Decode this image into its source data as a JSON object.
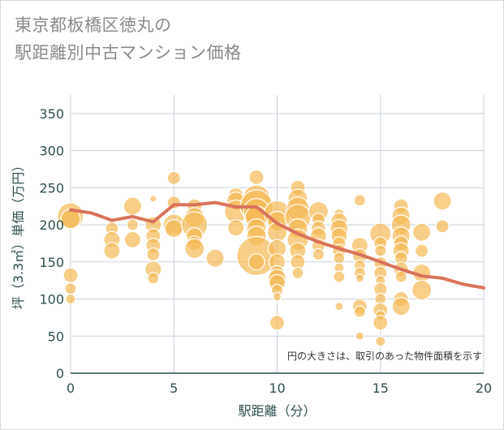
{
  "title_line1": "東京都板橋区徳丸の",
  "title_line2": "駅距離別中古マンション価格",
  "chart_data": {
    "type": "scatter",
    "xlabel": "駅距離（分）",
    "ylabel": "坪（3.3㎡）単価（万円）",
    "xlim": [
      0,
      20
    ],
    "ylim": [
      0,
      375
    ],
    "xticks": [
      0,
      5,
      10,
      15,
      20
    ],
    "yticks": [
      0,
      50,
      100,
      150,
      200,
      250,
      300,
      350
    ],
    "grid": true,
    "annotation": "円の大きさは、取引のあった物件面積を示す",
    "colors": {
      "bubble": "#f5b955",
      "line": "#d9735b",
      "grid": "#c9d2dc"
    },
    "bubbles": [
      {
        "x": 0,
        "y": 212,
        "s": 16
      },
      {
        "x": 0,
        "y": 208,
        "s": 12
      },
      {
        "x": 0,
        "y": 132,
        "s": 9
      },
      {
        "x": 0,
        "y": 114,
        "s": 7
      },
      {
        "x": 0,
        "y": 100,
        "s": 6
      },
      {
        "x": 2,
        "y": 195,
        "s": 8
      },
      {
        "x": 2,
        "y": 180,
        "s": 10
      },
      {
        "x": 2,
        "y": 165,
        "s": 10
      },
      {
        "x": 3,
        "y": 225,
        "s": 11
      },
      {
        "x": 3,
        "y": 200,
        "s": 7
      },
      {
        "x": 3,
        "y": 180,
        "s": 10
      },
      {
        "x": 4,
        "y": 235,
        "s": 4
      },
      {
        "x": 4,
        "y": 200,
        "s": 10
      },
      {
        "x": 4,
        "y": 185,
        "s": 9
      },
      {
        "x": 4,
        "y": 172,
        "s": 9
      },
      {
        "x": 4,
        "y": 160,
        "s": 8
      },
      {
        "x": 4,
        "y": 140,
        "s": 10
      },
      {
        "x": 4,
        "y": 128,
        "s": 7
      },
      {
        "x": 5,
        "y": 263,
        "s": 8
      },
      {
        "x": 5,
        "y": 230,
        "s": 8
      },
      {
        "x": 5,
        "y": 200,
        "s": 13
      },
      {
        "x": 5,
        "y": 195,
        "s": 11
      },
      {
        "x": 6,
        "y": 225,
        "s": 9
      },
      {
        "x": 6,
        "y": 210,
        "s": 12
      },
      {
        "x": 6,
        "y": 200,
        "s": 16
      },
      {
        "x": 6,
        "y": 185,
        "s": 10
      },
      {
        "x": 6,
        "y": 175,
        "s": 9
      },
      {
        "x": 6,
        "y": 168,
        "s": 12
      },
      {
        "x": 7,
        "y": 155,
        "s": 11
      },
      {
        "x": 8,
        "y": 240,
        "s": 9
      },
      {
        "x": 8,
        "y": 232,
        "s": 11
      },
      {
        "x": 8,
        "y": 218,
        "s": 14
      },
      {
        "x": 8,
        "y": 196,
        "s": 10
      },
      {
        "x": 9,
        "y": 264,
        "s": 9
      },
      {
        "x": 9,
        "y": 235,
        "s": 17
      },
      {
        "x": 9,
        "y": 225,
        "s": 20
      },
      {
        "x": 9,
        "y": 218,
        "s": 16
      },
      {
        "x": 9,
        "y": 210,
        "s": 14
      },
      {
        "x": 9,
        "y": 195,
        "s": 12
      },
      {
        "x": 9,
        "y": 185,
        "s": 12
      },
      {
        "x": 9,
        "y": 158,
        "s": 24
      },
      {
        "x": 9,
        "y": 150,
        "s": 10
      },
      {
        "x": 10,
        "y": 215,
        "s": 16
      },
      {
        "x": 10,
        "y": 205,
        "s": 12
      },
      {
        "x": 10,
        "y": 190,
        "s": 12
      },
      {
        "x": 10,
        "y": 168,
        "s": 11
      },
      {
        "x": 10,
        "y": 150,
        "s": 10
      },
      {
        "x": 10,
        "y": 135,
        "s": 9
      },
      {
        "x": 10,
        "y": 128,
        "s": 11
      },
      {
        "x": 10,
        "y": 122,
        "s": 10
      },
      {
        "x": 10,
        "y": 112,
        "s": 7
      },
      {
        "x": 10,
        "y": 103,
        "s": 5
      },
      {
        "x": 10,
        "y": 68,
        "s": 9
      },
      {
        "x": 11,
        "y": 250,
        "s": 9
      },
      {
        "x": 11,
        "y": 235,
        "s": 12
      },
      {
        "x": 11,
        "y": 222,
        "s": 14
      },
      {
        "x": 11,
        "y": 210,
        "s": 16
      },
      {
        "x": 11,
        "y": 195,
        "s": 12
      },
      {
        "x": 11,
        "y": 180,
        "s": 13
      },
      {
        "x": 11,
        "y": 165,
        "s": 10
      },
      {
        "x": 11,
        "y": 150,
        "s": 9
      },
      {
        "x": 11,
        "y": 135,
        "s": 7
      },
      {
        "x": 12,
        "y": 218,
        "s": 12
      },
      {
        "x": 12,
        "y": 207,
        "s": 8
      },
      {
        "x": 12,
        "y": 195,
        "s": 9
      },
      {
        "x": 12,
        "y": 185,
        "s": 10
      },
      {
        "x": 12,
        "y": 172,
        "s": 8
      },
      {
        "x": 12,
        "y": 160,
        "s": 7
      },
      {
        "x": 13,
        "y": 215,
        "s": 6
      },
      {
        "x": 13,
        "y": 205,
        "s": 10
      },
      {
        "x": 13,
        "y": 195,
        "s": 11
      },
      {
        "x": 13,
        "y": 185,
        "s": 10
      },
      {
        "x": 13,
        "y": 175,
        "s": 8
      },
      {
        "x": 13,
        "y": 165,
        "s": 8
      },
      {
        "x": 13,
        "y": 155,
        "s": 7
      },
      {
        "x": 13,
        "y": 142,
        "s": 6
      },
      {
        "x": 13,
        "y": 130,
        "s": 7
      },
      {
        "x": 13,
        "y": 90,
        "s": 5
      },
      {
        "x": 14,
        "y": 233,
        "s": 7
      },
      {
        "x": 14,
        "y": 172,
        "s": 10
      },
      {
        "x": 14,
        "y": 158,
        "s": 9
      },
      {
        "x": 14,
        "y": 145,
        "s": 7
      },
      {
        "x": 14,
        "y": 135,
        "s": 7
      },
      {
        "x": 14,
        "y": 128,
        "s": 5
      },
      {
        "x": 14,
        "y": 90,
        "s": 9
      },
      {
        "x": 14,
        "y": 83,
        "s": 7
      },
      {
        "x": 14,
        "y": 50,
        "s": 5
      },
      {
        "x": 15,
        "y": 188,
        "s": 13
      },
      {
        "x": 15,
        "y": 175,
        "s": 8
      },
      {
        "x": 15,
        "y": 165,
        "s": 7
      },
      {
        "x": 15,
        "y": 148,
        "s": 8
      },
      {
        "x": 15,
        "y": 135,
        "s": 8
      },
      {
        "x": 15,
        "y": 125,
        "s": 6
      },
      {
        "x": 15,
        "y": 113,
        "s": 8
      },
      {
        "x": 15,
        "y": 100,
        "s": 7
      },
      {
        "x": 15,
        "y": 85,
        "s": 9
      },
      {
        "x": 15,
        "y": 78,
        "s": 6
      },
      {
        "x": 15,
        "y": 68,
        "s": 9
      },
      {
        "x": 15,
        "y": 43,
        "s": 6
      },
      {
        "x": 16,
        "y": 225,
        "s": 9
      },
      {
        "x": 16,
        "y": 212,
        "s": 11
      },
      {
        "x": 16,
        "y": 200,
        "s": 12
      },
      {
        "x": 16,
        "y": 185,
        "s": 11
      },
      {
        "x": 16,
        "y": 175,
        "s": 9
      },
      {
        "x": 16,
        "y": 165,
        "s": 10
      },
      {
        "x": 16,
        "y": 155,
        "s": 8
      },
      {
        "x": 16,
        "y": 140,
        "s": 9
      },
      {
        "x": 16,
        "y": 130,
        "s": 7
      },
      {
        "x": 16,
        "y": 100,
        "s": 9
      },
      {
        "x": 16,
        "y": 90,
        "s": 11
      },
      {
        "x": 17,
        "y": 190,
        "s": 11
      },
      {
        "x": 17,
        "y": 165,
        "s": 8
      },
      {
        "x": 17,
        "y": 135,
        "s": 11
      },
      {
        "x": 17,
        "y": 112,
        "s": 12
      },
      {
        "x": 18,
        "y": 232,
        "s": 11
      },
      {
        "x": 18,
        "y": 198,
        "s": 8
      }
    ],
    "trend": {
      "x": [
        0,
        1,
        2,
        3,
        4,
        5,
        6,
        7,
        8,
        9,
        10,
        11,
        12,
        13,
        14,
        15,
        16,
        17,
        18,
        19,
        20
      ],
      "y": [
        220,
        216,
        206,
        211,
        204,
        227,
        227,
        230,
        224,
        224,
        202,
        188,
        177,
        168,
        160,
        150,
        140,
        131,
        128,
        120,
        115
      ]
    }
  }
}
